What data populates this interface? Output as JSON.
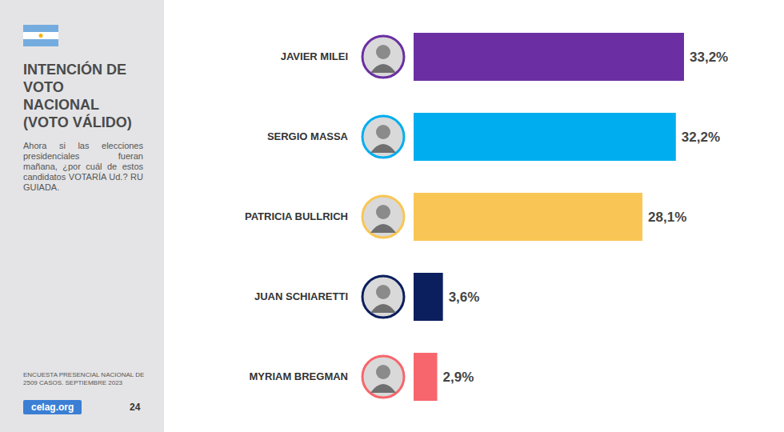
{
  "chart_data": {
    "type": "bar",
    "orientation": "horizontal",
    "title": "INTENCIÓN DE VOTO NACIONAL (VOTO VÁLIDO)",
    "subtitle": "Ahora si las elecciones presidenciales fueran mañana, ¿por cuál de estos candidatos VOTARÍA Ud.? RU GUIADA.",
    "annotations": [
      "ENCUESTA PRESENCIAL NACIONAL DE 2509 CASOS. SEPTIEMBRE 2023",
      "celag.org",
      "24"
    ],
    "categories": [
      "JAVIER MILEI",
      "SERGIO MASSA",
      "PATRICIA BULLRICH",
      "JUAN SCHIARETTI",
      "MYRIAM BREGMAN"
    ],
    "values": [
      33.2,
      32.2,
      28.1,
      3.6,
      2.9
    ],
    "value_labels": [
      "33,2%",
      "32,2%",
      "28,1%",
      "3,6%",
      "2,9%"
    ],
    "colors": [
      "#6b2fa3",
      "#00aeef",
      "#f9c655",
      "#0b1f5e",
      "#f7666c"
    ],
    "data_labels": true,
    "tick_labels": "y"
  }
}
